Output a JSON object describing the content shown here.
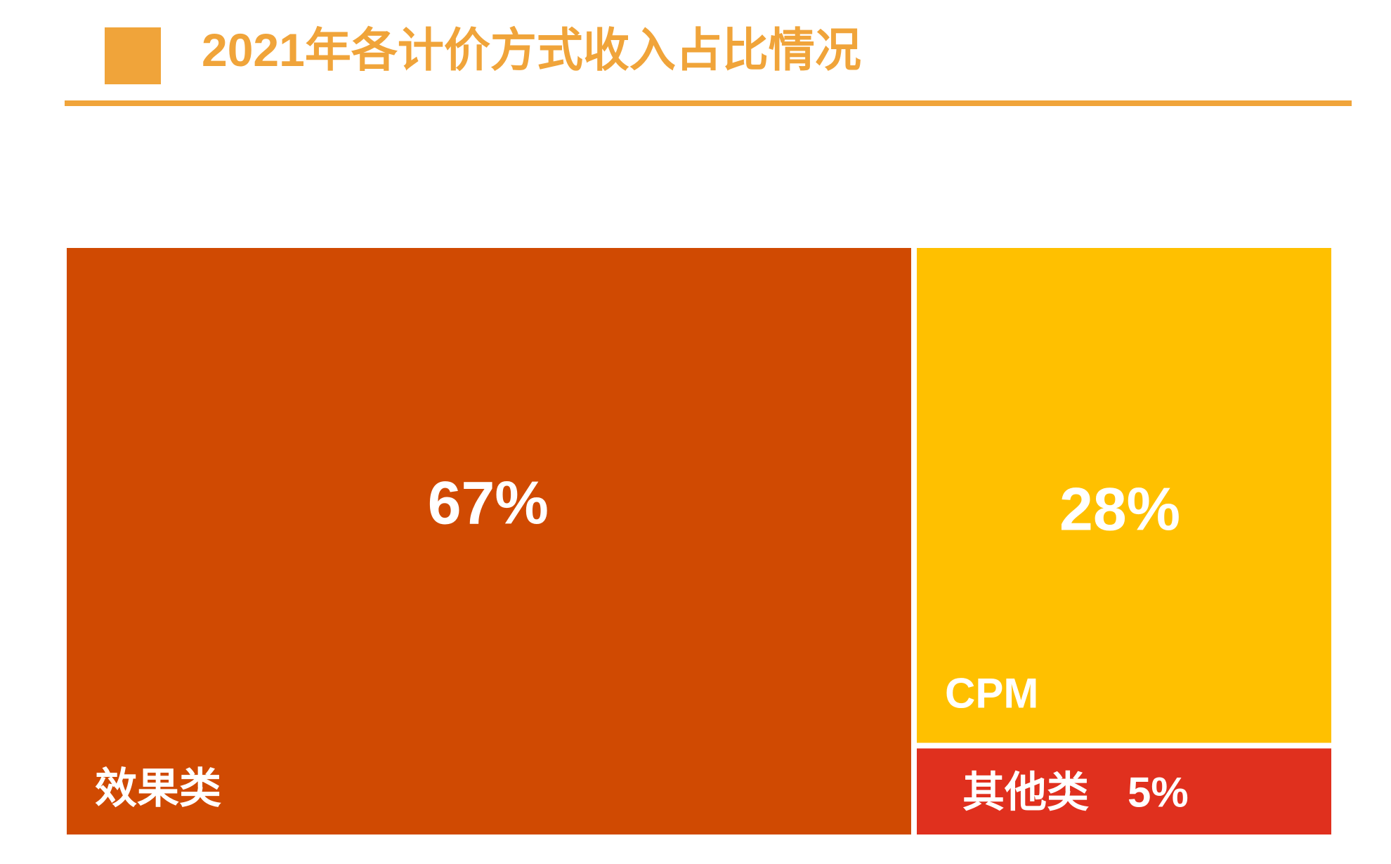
{
  "title": "2021年各计价方式收入占比情况",
  "colors": {
    "accent": "#f0a43a",
    "tile_text": "#ffffff"
  },
  "chart_data": {
    "type": "treemap",
    "title": "2021年各计价方式收入占比情况",
    "unit": "%",
    "items": [
      {
        "name": "效果类",
        "value": 67,
        "label": "67%",
        "color": "#d04a02"
      },
      {
        "name": "CPM",
        "value": 28,
        "label": "28%",
        "color": "#ffc000"
      },
      {
        "name": "其他类",
        "value": 5,
        "label": "5%",
        "color": "#e0301e"
      }
    ]
  }
}
